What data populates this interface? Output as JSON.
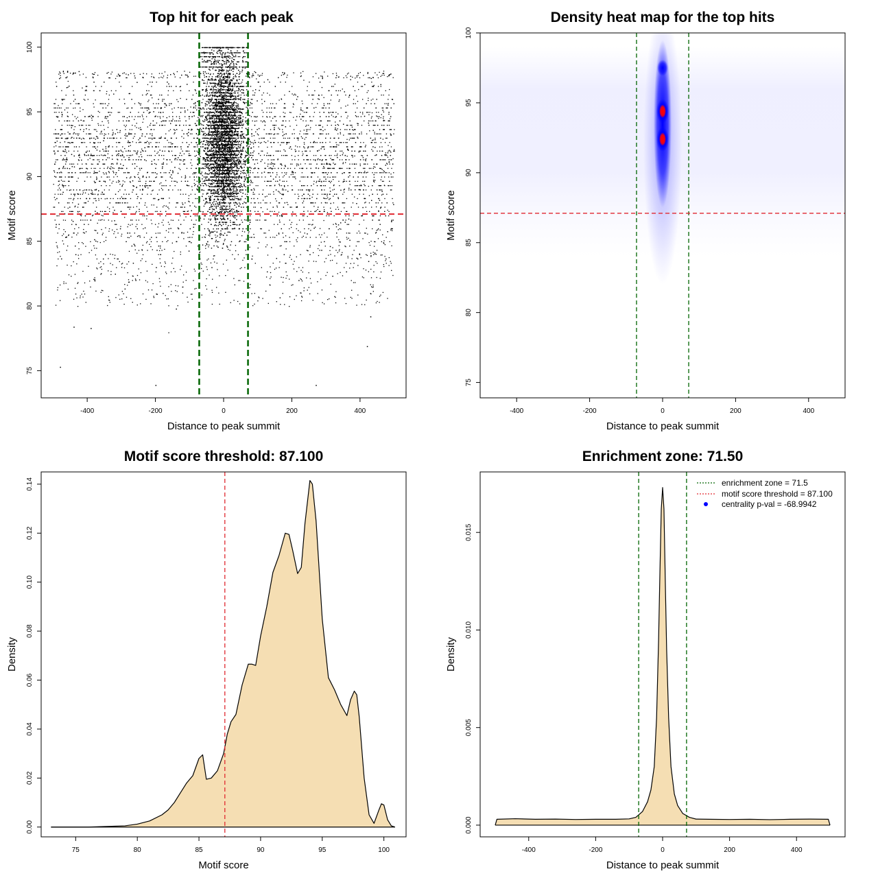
{
  "colors": {
    "points": "#000000",
    "enrichment_line": "#006400",
    "threshold_line": "#e0262e",
    "density_fill": "#f5deb3",
    "heat_low": "#ffffff",
    "heat_mid": "#0000ff",
    "heat_high": "#ff0000",
    "legend_dot": "#0000ff"
  },
  "chart_data": [
    {
      "type": "scatter",
      "title": "Top hit for each peak",
      "xlabel": "Distance to peak summit",
      "ylabel": "Motif score",
      "xlim": [
        -535,
        535
      ],
      "ylim": [
        72.9,
        101.1
      ],
      "xticks": [
        -400,
        -200,
        0,
        200,
        400
      ],
      "yticks": [
        75,
        80,
        85,
        90,
        95,
        100
      ],
      "vlines": [
        -71.5,
        71.5
      ],
      "hline": 87.1,
      "point_distribution": {
        "x_range": [
          -500,
          500
        ],
        "y_range": [
          73.9,
          100
        ],
        "central_width": 28,
        "outlier_points": [
          [
            -480,
            75.3
          ],
          [
            -440,
            78.4
          ],
          [
            -390,
            78.3
          ],
          [
            -200,
            73.9
          ],
          [
            -140,
            79.8
          ],
          [
            270,
            73.9
          ],
          [
            420,
            76.9
          ],
          [
            430,
            79.2
          ]
        ]
      }
    },
    {
      "type": "heatmap",
      "title": "Density heat map for the top hits",
      "xlabel": "Distance to peak summit",
      "ylabel": "Motif score",
      "xlim": [
        -500,
        500
      ],
      "ylim": [
        73.9,
        100
      ],
      "xticks": [
        -400,
        -200,
        0,
        200,
        400
      ],
      "yticks": [
        75,
        80,
        85,
        90,
        95,
        100
      ],
      "vlines": [
        -71.5,
        71.5
      ],
      "hline": 87.1,
      "hotspots": [
        {
          "x": 0,
          "y": 94.4,
          "level": "high"
        },
        {
          "x": 0,
          "y": 92.4,
          "level": "high"
        },
        {
          "x": 0,
          "y": 97.5,
          "level": "mid"
        }
      ]
    },
    {
      "type": "area",
      "title": "Motif score threshold: 87.100",
      "xlabel": "Motif score",
      "ylabel": "Density",
      "xlim": [
        72.2,
        101.8
      ],
      "ylim": [
        -0.004,
        0.145
      ],
      "xticks": [
        75,
        80,
        85,
        90,
        95,
        100
      ],
      "yticks": [
        0.0,
        0.02,
        0.04,
        0.06,
        0.08,
        0.1,
        0.12,
        0.14
      ],
      "ytick_labels": [
        "0.00",
        "0.02",
        "0.04",
        "0.06",
        "0.08",
        "0.10",
        "0.12",
        "0.14"
      ],
      "vline": 87.1,
      "x": [
        73,
        76,
        79,
        80,
        81,
        82,
        82.5,
        83,
        83.5,
        84,
        84.5,
        85,
        85.3,
        85.6,
        86,
        86.5,
        87,
        87.3,
        87.6,
        88,
        88.5,
        89,
        89.3,
        89.6,
        90,
        90.5,
        91,
        91.5,
        92,
        92.3,
        92.6,
        93,
        93.3,
        93.6,
        94,
        94.2,
        94.5,
        95,
        95.5,
        96,
        96.5,
        97,
        97.3,
        97.6,
        97.8,
        98,
        98.4,
        98.8,
        99.2,
        99.6,
        99.8,
        100,
        100.3,
        100.6,
        100.9
      ],
      "y": [
        0.0,
        0.0,
        0.0005,
        0.0012,
        0.0025,
        0.005,
        0.007,
        0.01,
        0.014,
        0.018,
        0.021,
        0.028,
        0.0295,
        0.0195,
        0.02,
        0.023,
        0.03,
        0.038,
        0.043,
        0.046,
        0.058,
        0.0665,
        0.0665,
        0.066,
        0.078,
        0.09,
        0.104,
        0.111,
        0.12,
        0.1195,
        0.113,
        0.1035,
        0.106,
        0.124,
        0.1415,
        0.14,
        0.125,
        0.085,
        0.061,
        0.056,
        0.05,
        0.0455,
        0.052,
        0.0555,
        0.054,
        0.045,
        0.02,
        0.005,
        0.0015,
        0.007,
        0.0095,
        0.009,
        0.003,
        0.0005,
        0.0
      ]
    },
    {
      "type": "area",
      "title": "Enrichment zone: 71.50",
      "xlabel": "Distance to peak summit",
      "ylabel": "Density",
      "xlim": [
        -545,
        545
      ],
      "ylim": [
        -0.0006,
        0.0181
      ],
      "xticks": [
        -400,
        -200,
        0,
        200,
        400
      ],
      "yticks": [
        0.0,
        0.005,
        0.01,
        0.015
      ],
      "ytick_labels": [
        "0.000",
        "0.005",
        "0.010",
        "0.015"
      ],
      "vlines": [
        -71.5,
        71.5
      ],
      "x": [
        -500,
        -495,
        -440,
        -380,
        -320,
        -260,
        -200,
        -140,
        -100,
        -80,
        -60,
        -45,
        -35,
        -25,
        -18,
        -12,
        -8,
        -4,
        0,
        4,
        8,
        12,
        18,
        25,
        35,
        45,
        60,
        80,
        100,
        140,
        200,
        260,
        320,
        380,
        440,
        495,
        500
      ],
      "y": [
        0.0,
        0.0003,
        0.00033,
        0.0003,
        0.00031,
        0.00029,
        0.0003,
        0.0003,
        0.00032,
        0.0004,
        0.0007,
        0.0012,
        0.0018,
        0.003,
        0.0055,
        0.0095,
        0.013,
        0.0162,
        0.0173,
        0.0162,
        0.0125,
        0.009,
        0.0055,
        0.003,
        0.0016,
        0.001,
        0.0006,
        0.0004,
        0.00031,
        0.0003,
        0.00029,
        0.0003,
        0.00028,
        0.0003,
        0.00031,
        0.0003,
        0.0
      ],
      "legend": {
        "position": "top-right",
        "entries": [
          {
            "label": "enrichment zone = 71.5",
            "style": "dotted-line",
            "color": "#006400"
          },
          {
            "label": "motif score threshold = 87.100",
            "style": "dotted-line",
            "color": "#e0262e"
          },
          {
            "label": "centrality p-val = -68.9942",
            "style": "dot",
            "color": "#0000ff"
          }
        ]
      }
    }
  ]
}
